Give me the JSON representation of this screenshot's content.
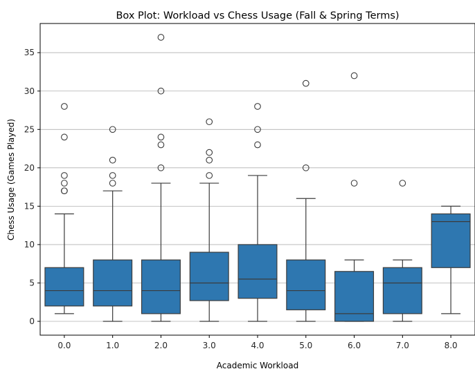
{
  "chart_data": {
    "type": "box",
    "title": "Box Plot: Workload vs Chess Usage (Fall & Spring Terms)",
    "xlabel": "Academic Workload",
    "ylabel": "Chess Usage (Games Played)",
    "categories": [
      "0.0",
      "1.0",
      "2.0",
      "3.0",
      "4.0",
      "5.0",
      "6.0",
      "7.0",
      "8.0"
    ],
    "ylim": [
      -1.8,
      38.8
    ],
    "yticks": [
      0,
      5,
      10,
      15,
      20,
      25,
      30,
      35
    ],
    "grid": "horizontal",
    "box_color": "#2e77b0",
    "line_color": "#3b3b3b",
    "boxes": [
      {
        "category": "0.0",
        "whisker_low": 1,
        "q1": 2,
        "median": 4,
        "q3": 7,
        "whisker_high": 14,
        "outliers": [
          17,
          17,
          18,
          19,
          24,
          28
        ]
      },
      {
        "category": "1.0",
        "whisker_low": 0,
        "q1": 2,
        "median": 4,
        "q3": 8,
        "whisker_high": 17,
        "outliers": [
          18,
          19,
          21,
          25
        ]
      },
      {
        "category": "2.0",
        "whisker_low": 0,
        "q1": 1,
        "median": 4,
        "q3": 8,
        "whisker_high": 18,
        "outliers": [
          20,
          23,
          24,
          30,
          37
        ]
      },
      {
        "category": "3.0",
        "whisker_low": 0,
        "q1": 2.7,
        "median": 5,
        "q3": 9,
        "whisker_high": 18,
        "outliers": [
          19,
          21,
          22,
          26
        ]
      },
      {
        "category": "4.0",
        "whisker_low": 0,
        "q1": 3,
        "median": 5.5,
        "q3": 10,
        "whisker_high": 19,
        "outliers": [
          23,
          25,
          28
        ]
      },
      {
        "category": "5.0",
        "whisker_low": 0,
        "q1": 1.5,
        "median": 4,
        "q3": 8,
        "whisker_high": 16,
        "outliers": [
          20,
          31
        ]
      },
      {
        "category": "6.0",
        "whisker_low": 0,
        "q1": 0,
        "median": 1,
        "q3": 6.5,
        "whisker_high": 8,
        "outliers": [
          18,
          32
        ]
      },
      {
        "category": "7.0",
        "whisker_low": 0,
        "q1": 1,
        "median": 5,
        "q3": 7,
        "whisker_high": 8,
        "outliers": [
          18
        ]
      },
      {
        "category": "8.0",
        "whisker_low": 1,
        "q1": 7,
        "median": 13,
        "q3": 14,
        "whisker_high": 15,
        "outliers": []
      }
    ]
  }
}
